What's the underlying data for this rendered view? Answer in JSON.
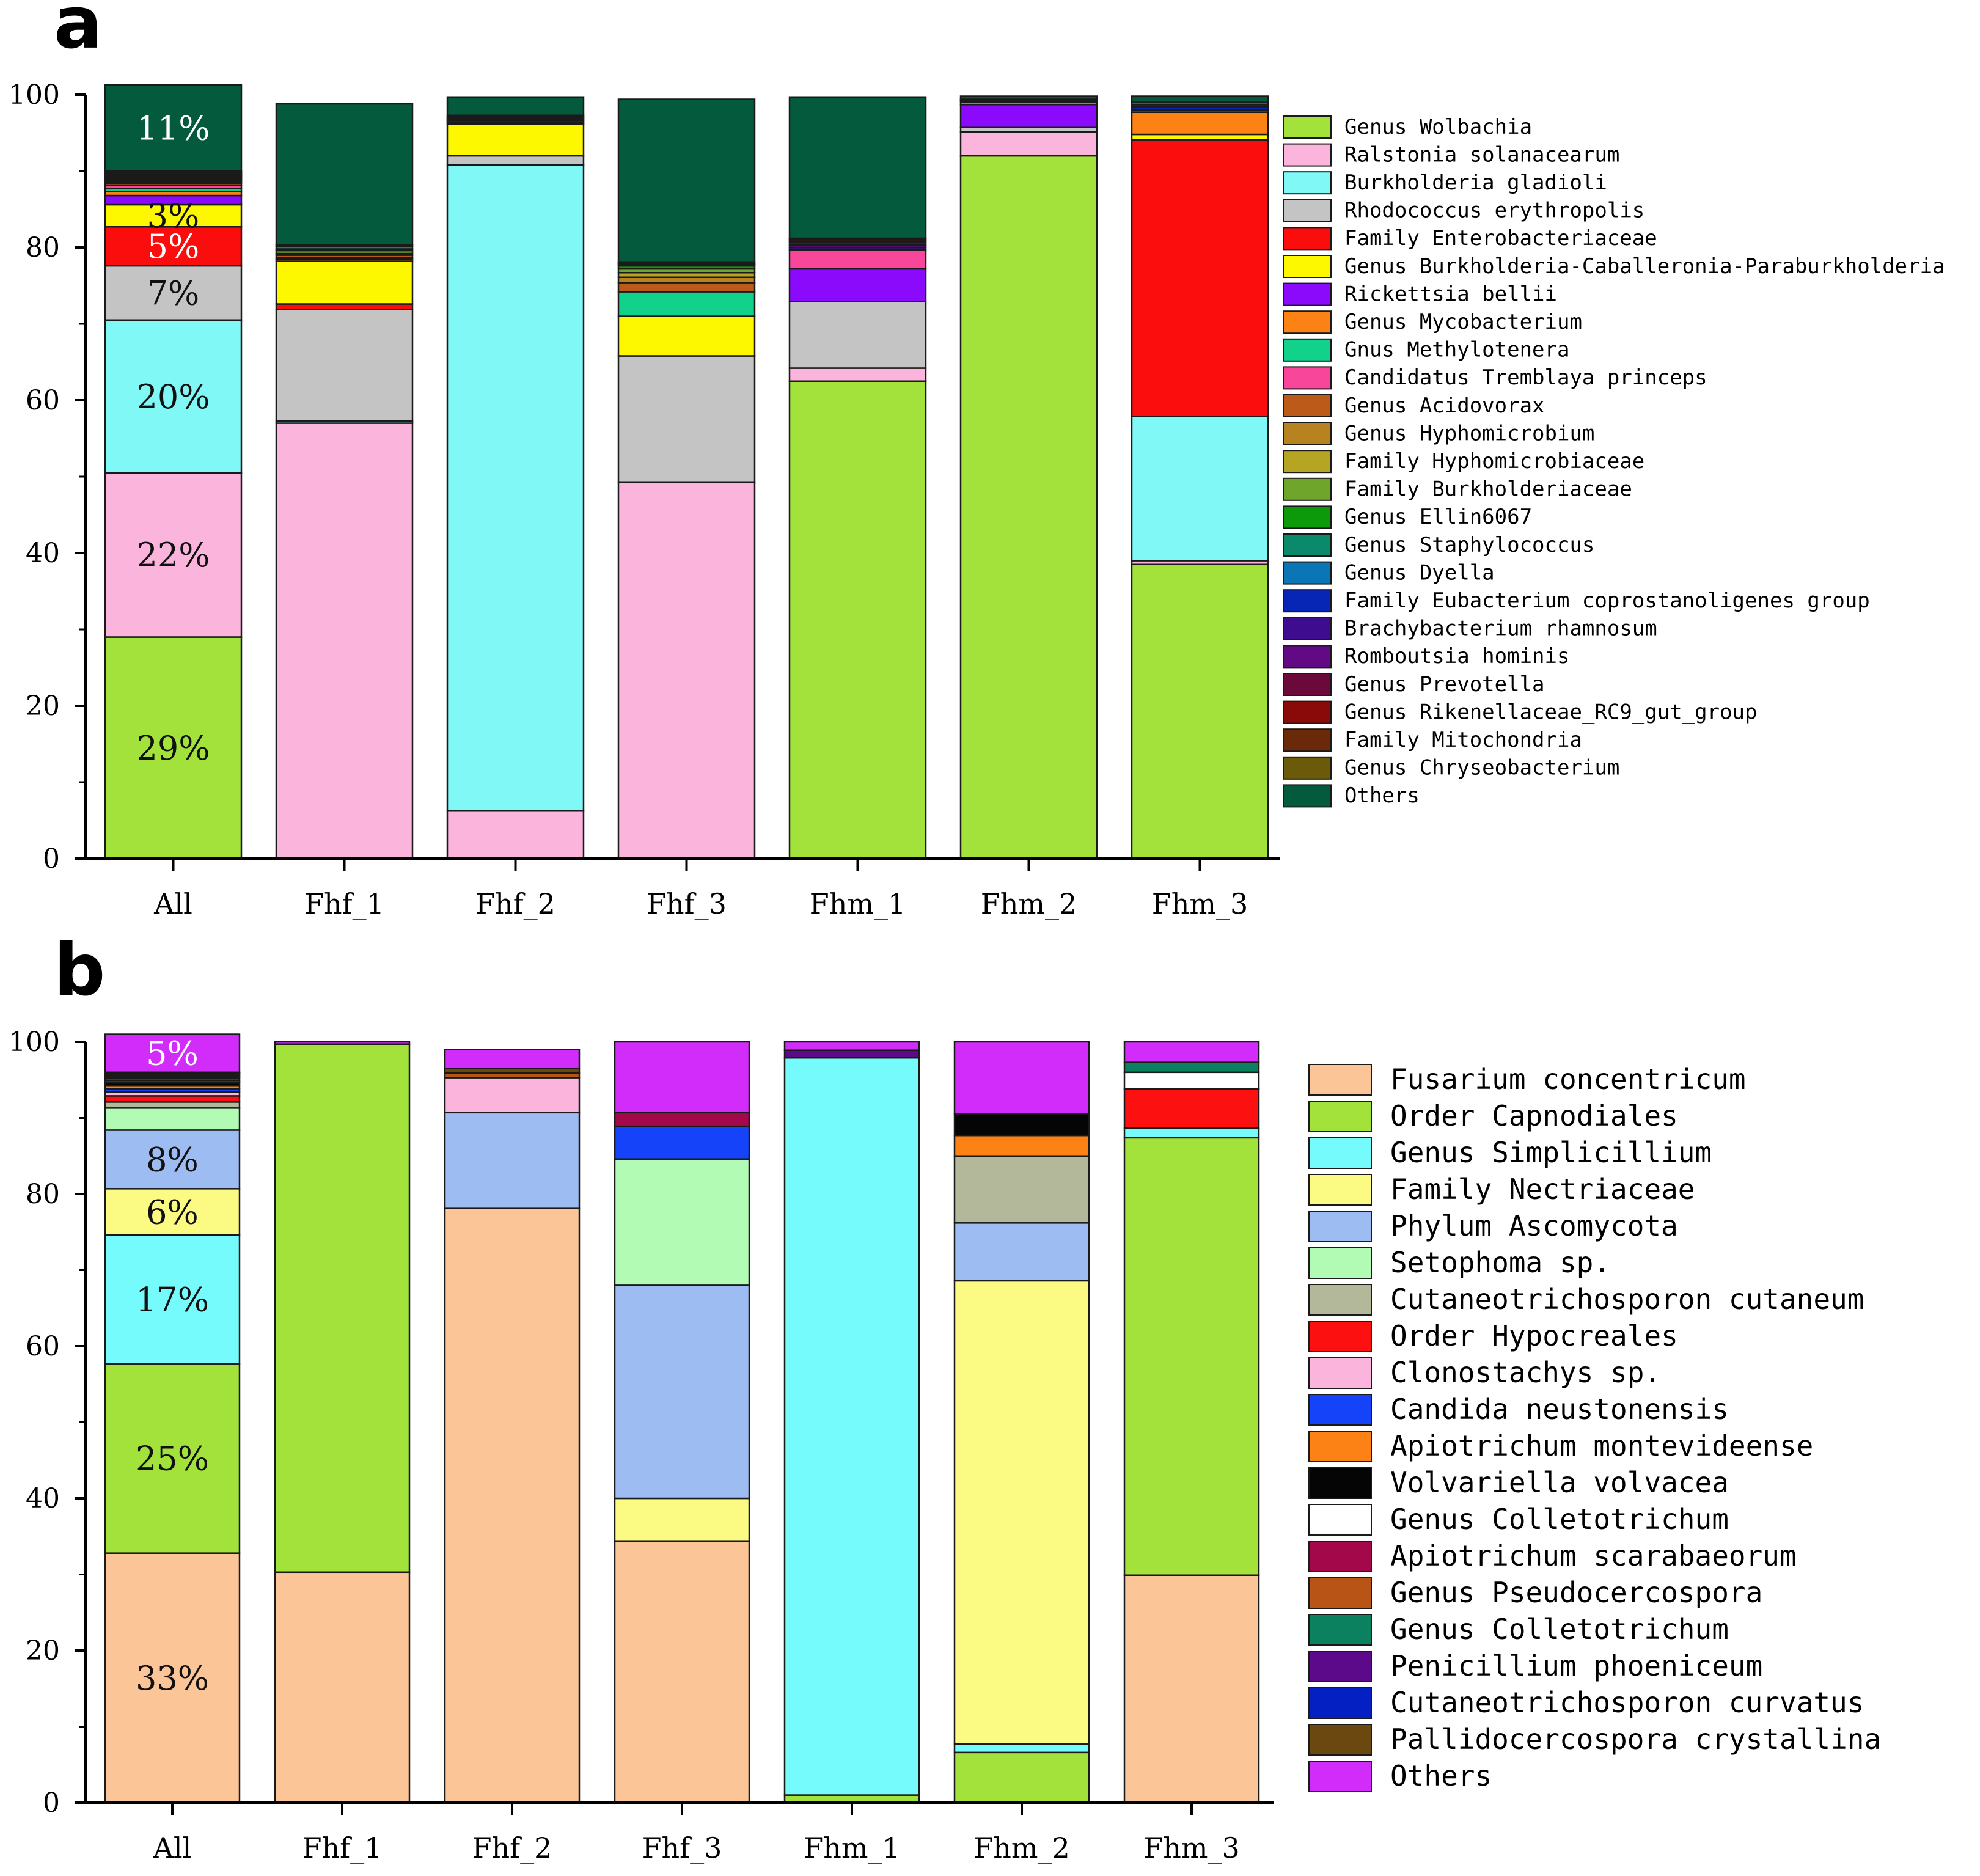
{
  "chart_data": [
    {
      "panel": "a",
      "type": "bar",
      "stacked": true,
      "categories": [
        "All",
        "Fhf_1",
        "Fhf_2",
        "Fhf_3",
        "Fhm_1",
        "Fhm_2",
        "Fhm_3"
      ],
      "ylim": [
        0,
        100
      ],
      "yticks": [
        "0",
        "20",
        "40",
        "60",
        "80",
        "100"
      ],
      "legend_position": "right",
      "series": [
        {
          "name": "Genus Wolbachia",
          "color": "#a2e23b",
          "values": [
            29,
            0,
            0,
            0,
            62.5,
            92,
            38.5
          ]
        },
        {
          "name": "Ralstonia solanacearum",
          "color": "#fbb4dc",
          "values": [
            21.5,
            57,
            6.3,
            49.3,
            1.7,
            3.1,
            0.5
          ]
        },
        {
          "name": "Burkholderia gladioli",
          "color": "#7ff8f6",
          "values": [
            20,
            0.3,
            84.5,
            0,
            0,
            0,
            18.9
          ]
        },
        {
          "name": "Rhodococcus erythropolis",
          "color": "#c4c4c4",
          "values": [
            7.1,
            14.6,
            1.2,
            16.5,
            8.7,
            0.6,
            0
          ]
        },
        {
          "name": "Family Enterobacteriaceae",
          "color": "#fc0d0d",
          "values": [
            5.1,
            0.7,
            0,
            0,
            0,
            0,
            36.2
          ]
        },
        {
          "name": "Genus Burkholderia-Caballeronia-Paraburkholderia",
          "color": "#fdf700",
          "values": [
            2.9,
            5.6,
            4.1,
            5.2,
            0,
            0,
            0.7
          ]
        },
        {
          "name": "Rickettsia bellii",
          "color": "#8b0afc",
          "values": [
            1.2,
            0,
            0,
            0,
            4.3,
            3,
            0
          ]
        },
        {
          "name": "Genus Mycobacterium",
          "color": "#fc8215",
          "values": [
            0.5,
            0.3,
            0.2,
            0,
            0,
            0,
            2.9
          ]
        },
        {
          "name": "Gnus Methylotenera",
          "color": "#12d28b",
          "values": [
            0.4,
            0,
            0,
            3.2,
            0,
            0,
            0
          ]
        },
        {
          "name": "Candidatus Tremblaya princeps",
          "color": "#f8479a",
          "values": [
            0.4,
            0.2,
            0,
            0,
            2.5,
            0.3,
            0
          ]
        },
        {
          "name": "Genus Acidovorax",
          "color": "#bc5a1a",
          "values": [
            0.3,
            0.3,
            0.3,
            1.2,
            0,
            0,
            0
          ]
        },
        {
          "name": "Genus Hyphomicrobium",
          "color": "#b78320",
          "values": [
            0.2,
            0.2,
            0,
            0.7,
            0,
            0,
            0
          ]
        },
        {
          "name": "Family Hyphomicrobiaceae",
          "color": "#b5a522",
          "values": [
            0.2,
            0,
            0.2,
            0.6,
            0,
            0,
            0
          ]
        },
        {
          "name": "Family Burkholderiaceae",
          "color": "#6ea52a",
          "values": [
            0.2,
            0.4,
            0.2,
            0.5,
            0,
            0,
            0
          ]
        },
        {
          "name": "Genus Ellin6067",
          "color": "#0d9a0a",
          "values": [
            0.1,
            0.2,
            0.1,
            0.4,
            0,
            0,
            0
          ]
        },
        {
          "name": "Genus Staphylococcus",
          "color": "#0b8a6b",
          "values": [
            0.1,
            0.3,
            0,
            0.2,
            0,
            0,
            0
          ]
        },
        {
          "name": "Genus Dyella",
          "color": "#0b76b6",
          "values": [
            0.1,
            0.2,
            0,
            0.1,
            0,
            0,
            0.3
          ]
        },
        {
          "name": "Family Eubacterium coprostanoligenes group",
          "color": "#0826b5",
          "values": [
            0.1,
            0,
            0,
            0,
            0,
            0,
            0.4
          ]
        },
        {
          "name": "Brachybacterium rhamnosum",
          "color": "#3e0d8f",
          "values": [
            0.1,
            0,
            0,
            0,
            0.3,
            0.2,
            0.3
          ]
        },
        {
          "name": "Romboutsia hominis",
          "color": "#620a86",
          "values": [
            0.1,
            0,
            0,
            0,
            0.3,
            0.2,
            0
          ]
        },
        {
          "name": "Genus Prevotella",
          "color": "#6b0a3a",
          "values": [
            0.1,
            0,
            0,
            0,
            0.4,
            0,
            0
          ]
        },
        {
          "name": "Genus Rikenellaceae_RC9_gut_group",
          "color": "#8a0a0a",
          "values": [
            0.1,
            0,
            0,
            0,
            0.3,
            0,
            0
          ]
        },
        {
          "name": "Family Mitochondria",
          "color": "#6a2a0a",
          "values": [
            0.1,
            0,
            0.2,
            0,
            0.2,
            0,
            0
          ]
        },
        {
          "name": "Genus Chryseobacterium",
          "color": "#6a5a0a",
          "values": [
            0.1,
            0,
            0,
            0.2,
            0,
            0,
            0.3
          ]
        },
        {
          "name": "Others",
          "color": "#045a3c",
          "values": [
            11.3,
            18.5,
            2.4,
            21.3,
            18.5,
            0.4,
            0.8
          ]
        }
      ],
      "bar_labels": {
        "All": [
          {
            "text": "29%",
            "series": "Genus Wolbachia",
            "color": "#111111"
          },
          {
            "text": "22%",
            "series": "Ralstonia solanacearum",
            "color": "#111111"
          },
          {
            "text": "20%",
            "series": "Burkholderia gladioli",
            "color": "#111111"
          },
          {
            "text": "7%",
            "series": "Rhodococcus erythropolis",
            "color": "#111111"
          },
          {
            "text": "5%",
            "series": "Family Enterobacteriaceae",
            "color": "#ffffff"
          },
          {
            "text": "3%",
            "series": "Genus Burkholderia-Caballeronia-Paraburkholderia",
            "color": "#111111"
          },
          {
            "text": "11%",
            "series": "Others",
            "color": "#ffffff"
          }
        ]
      }
    },
    {
      "panel": "b",
      "type": "bar",
      "stacked": true,
      "categories": [
        "All",
        "Fhf_1",
        "Fhf_2",
        "Fhf_3",
        "Fhm_1",
        "Fhm_2",
        "Fhm_3"
      ],
      "ylim": [
        0,
        100
      ],
      "yticks": [
        "0",
        "20",
        "40",
        "60",
        "80",
        "100"
      ],
      "legend_position": "right",
      "series": [
        {
          "name": "Fusarium concentricum",
          "color": "#fcc598",
          "values": [
            32.8,
            30.3,
            78.1,
            34.4,
            0,
            0,
            29.9
          ]
        },
        {
          "name": "Order Capnodiales",
          "color": "#a2e23b",
          "values": [
            24.9,
            69.4,
            0,
            0,
            1,
            6.6,
            57.5
          ]
        },
        {
          "name": "Genus Simplicillium",
          "color": "#75fbfc",
          "values": [
            16.9,
            0,
            0,
            0,
            96.9,
            1.1,
            1.3
          ]
        },
        {
          "name": "Family Nectriaceae",
          "color": "#fbfa83",
          "values": [
            6.1,
            0,
            0,
            5.6,
            0,
            60.9,
            0
          ]
        },
        {
          "name": "Phylum Ascomycota",
          "color": "#9dbcf2",
          "values": [
            7.7,
            0,
            12.6,
            28,
            0,
            7.6,
            0
          ]
        },
        {
          "name": "Setophoma sp.",
          "color": "#b1fbb5",
          "values": [
            2.9,
            0,
            0,
            16.6,
            0,
            0,
            0
          ]
        },
        {
          "name": "Cutaneotrichosporon cutaneum",
          "color": "#b4b89a",
          "values": [
            0.8,
            0,
            0,
            0,
            0,
            8.8,
            0
          ]
        },
        {
          "name": "Order Hypocreales",
          "color": "#fc1010",
          "values": [
            0.8,
            0,
            0,
            0,
            0,
            0,
            5.1
          ]
        },
        {
          "name": "Clonostachys sp.",
          "color": "#fbb4dc",
          "values": [
            0.5,
            0,
            4.6,
            0,
            0,
            0,
            0
          ]
        },
        {
          "name": "Candida neustonensis",
          "color": "#1543f9",
          "values": [
            0.4,
            0,
            0,
            4.3,
            0,
            0,
            0
          ]
        },
        {
          "name": "Apiotrichum montevideense",
          "color": "#fc8215",
          "values": [
            0.4,
            0,
            0,
            0,
            0,
            2.7,
            0
          ]
        },
        {
          "name": "Volvariella volvacea",
          "color": "#050505",
          "values": [
            0.4,
            0,
            0,
            0,
            0,
            2.8,
            0
          ]
        },
        {
          "name": "Genus Colletotrichum",
          "color": "#ffffff",
          "values": [
            0.3,
            0,
            0,
            0,
            0,
            0,
            2.2
          ]
        },
        {
          "name": "Apiotrichum scarabaeorum",
          "color": "#a2084a",
          "values": [
            0.3,
            0,
            0,
            1.8,
            0,
            0,
            0
          ]
        },
        {
          "name": "Genus Pseudocercospora",
          "color": "#b85415",
          "values": [
            0.2,
            0,
            0.6,
            0,
            0,
            0,
            0
          ]
        },
        {
          "name": "Genus Colletotrichum",
          "color": "#0b8160",
          "values": [
            0.2,
            0,
            0,
            0,
            0,
            0,
            1.3
          ]
        },
        {
          "name": "Penicillium phoeniceum",
          "color": "#5d0a8a",
          "values": [
            0.2,
            0,
            0,
            0,
            1,
            0,
            0
          ]
        },
        {
          "name": "Cutaneotrichosporon curvatus",
          "color": "#0520c2",
          "values": [
            0.1,
            0,
            0,
            0,
            0,
            0,
            0
          ]
        },
        {
          "name": "Pallidocercospora crystallina",
          "color": "#6a4810",
          "values": [
            0.1,
            0,
            0.6,
            0,
            0,
            0,
            0
          ]
        },
        {
          "name": "Others",
          "color": "#d22cfb",
          "values": [
            5,
            0.3,
            2.5,
            9.3,
            1.1,
            9.5,
            2.7
          ]
        }
      ],
      "bar_labels": {
        "All": [
          {
            "text": "33%",
            "series": "Fusarium concentricum",
            "color": "#111111"
          },
          {
            "text": "25%",
            "series": "Order Capnodiales",
            "color": "#111111"
          },
          {
            "text": "17%",
            "series": "Genus Simplicillium",
            "color": "#111111"
          },
          {
            "text": "6%",
            "series": "Family Nectriaceae",
            "color": "#111111"
          },
          {
            "text": "8%",
            "series": "Phylum Ascomycota",
            "color": "#111111"
          },
          {
            "text": "5%",
            "series": "Others",
            "color": "#ffffff"
          }
        ]
      }
    }
  ]
}
